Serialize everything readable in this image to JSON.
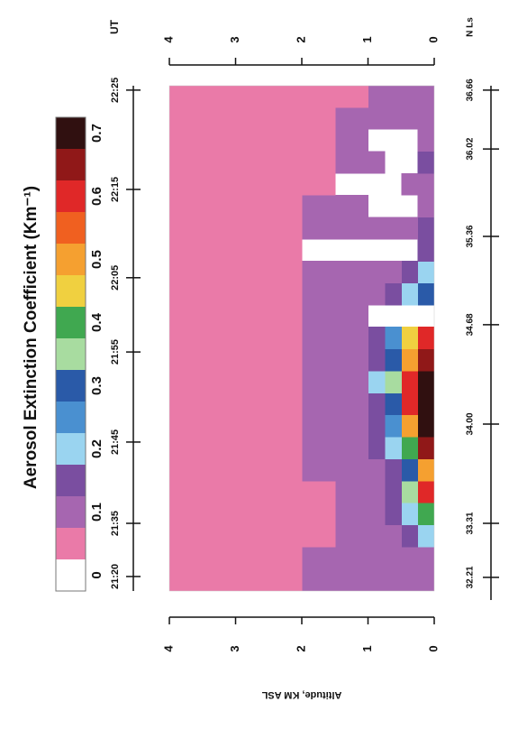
{
  "chart_data": {
    "type": "heatmap",
    "title": "Aerosol Extinction Coefficient (Km⁻¹)",
    "y_label": "Altitude, KM ASL",
    "x_label": "UT",
    "x2_label": "N Ls",
    "x": [
      21.325,
      21.375,
      21.425,
      21.475,
      21.525,
      21.575,
      21.625,
      21.675,
      21.725,
      21.775,
      21.825,
      21.875,
      21.925,
      21.975,
      22.025,
      22.075,
      22.125,
      22.175,
      22.225,
      22.275,
      22.325,
      22.375,
      22.425
    ],
    "ybins": [
      0,
      0.25,
      0.5,
      0.75,
      1,
      1.5,
      2,
      3,
      4
    ],
    "z": [
      [
        0.1,
        0.1,
        0.1,
        0.08,
        0.08,
        0.08,
        0.03,
        0.03
      ],
      [
        0.12,
        0.1,
        0.1,
        0.08,
        0.08,
        0.08,
        0.03,
        0.03
      ],
      [
        0.2,
        0.15,
        0.12,
        0.08,
        0.08,
        0.04,
        0.03,
        0.03
      ],
      [
        0.4,
        0.2,
        0.15,
        0.1,
        0.08,
        0.04,
        0.03,
        0.03
      ],
      [
        0.6,
        0.35,
        0.15,
        0.1,
        0.08,
        0.04,
        0.03,
        0.03
      ],
      [
        0.5,
        0.3,
        0.15,
        0.1,
        0.08,
        0.08,
        0.03,
        0.03
      ],
      [
        0.65,
        0.4,
        0.2,
        0.15,
        0.08,
        0.08,
        0.03,
        0.03
      ],
      [
        0.7,
        0.5,
        0.25,
        0.15,
        0.1,
        0.08,
        0.03,
        0.03
      ],
      [
        0.7,
        0.6,
        0.3,
        0.15,
        0.1,
        0.08,
        0.03,
        0.03
      ],
      [
        0.7,
        0.6,
        0.35,
        0.2,
        0.1,
        0.08,
        0.03,
        0.03
      ],
      [
        0.65,
        0.5,
        0.3,
        0.15,
        0.1,
        0.08,
        0.03,
        0.03
      ],
      [
        0.6,
        0.45,
        0.25,
        0.15,
        0.1,
        0.08,
        0.04,
        0.03
      ],
      [
        null,
        null,
        null,
        null,
        0.1,
        0.08,
        0.04,
        0.03
      ],
      [
        0.3,
        0.2,
        0.15,
        0.1,
        0.1,
        0.08,
        0.04,
        0.03
      ],
      [
        0.2,
        0.15,
        0.12,
        0.1,
        0.08,
        0.08,
        0.04,
        0.03
      ],
      [
        0.15,
        null,
        null,
        null,
        null,
        null,
        0.04,
        0.03
      ],
      [
        0.15,
        0.12,
        0.1,
        0.08,
        0.08,
        0.08,
        0.04,
        0.03
      ],
      [
        0.12,
        null,
        null,
        null,
        0.08,
        0.08,
        0.04,
        0.03
      ],
      [
        0.12,
        0.1,
        null,
        null,
        null,
        0.04,
        0.03,
        0.03
      ],
      [
        0.15,
        null,
        null,
        0.08,
        0.08,
        0.04,
        0.03,
        0.03
      ],
      [
        0.12,
        null,
        null,
        null,
        0.08,
        0.04,
        0.03,
        0.03
      ],
      [
        0.1,
        0.1,
        0.08,
        0.08,
        0.08,
        0.04,
        0.03,
        0.03
      ],
      [
        0.1,
        0.08,
        0.08,
        0.08,
        0.04,
        0.03,
        0.03,
        0.03
      ]
    ],
    "xlim": [
      21.3,
      22.45
    ],
    "xticks": [
      {
        "value": 21.333,
        "label": "21:20"
      },
      {
        "value": 21.454,
        "label": "21:35"
      },
      {
        "value": 21.639,
        "label": "21:45"
      },
      {
        "value": 21.844,
        "label": "21:55"
      },
      {
        "value": 22.013,
        "label": "22:05"
      },
      {
        "value": 22.214,
        "label": "22:15"
      },
      {
        "value": 22.44,
        "label": "22:25"
      }
    ],
    "x2ticks": [
      {
        "value": 21.331,
        "label": "32.21"
      },
      {
        "value": 21.454,
        "label": "33.31"
      },
      {
        "value": 21.68,
        "label": "34.00"
      },
      {
        "value": 21.906,
        "label": "34.68"
      },
      {
        "value": 22.107,
        "label": "35.36"
      },
      {
        "value": 22.306,
        "label": "36.02"
      },
      {
        "value": 22.44,
        "label": "36.66"
      }
    ],
    "ylim": [
      0,
      4
    ],
    "yticks": [
      0,
      1,
      2,
      3,
      4
    ],
    "colorbar": {
      "lim": [
        -0.025,
        0.725
      ],
      "ticks": [
        0,
        0.1,
        0.2,
        0.3,
        0.4,
        0.5,
        0.6,
        0.7
      ],
      "colors": [
        "#ffffff",
        "#ea7aa8",
        "#a666b0",
        "#7a4ea0",
        "#9ad4f0",
        "#4a90d0",
        "#2a5aa8",
        "#a8dca0",
        "#40a850",
        "#f0d040",
        "#f5a030",
        "#f06020",
        "#e02828",
        "#901818",
        "#301010"
      ]
    }
  }
}
